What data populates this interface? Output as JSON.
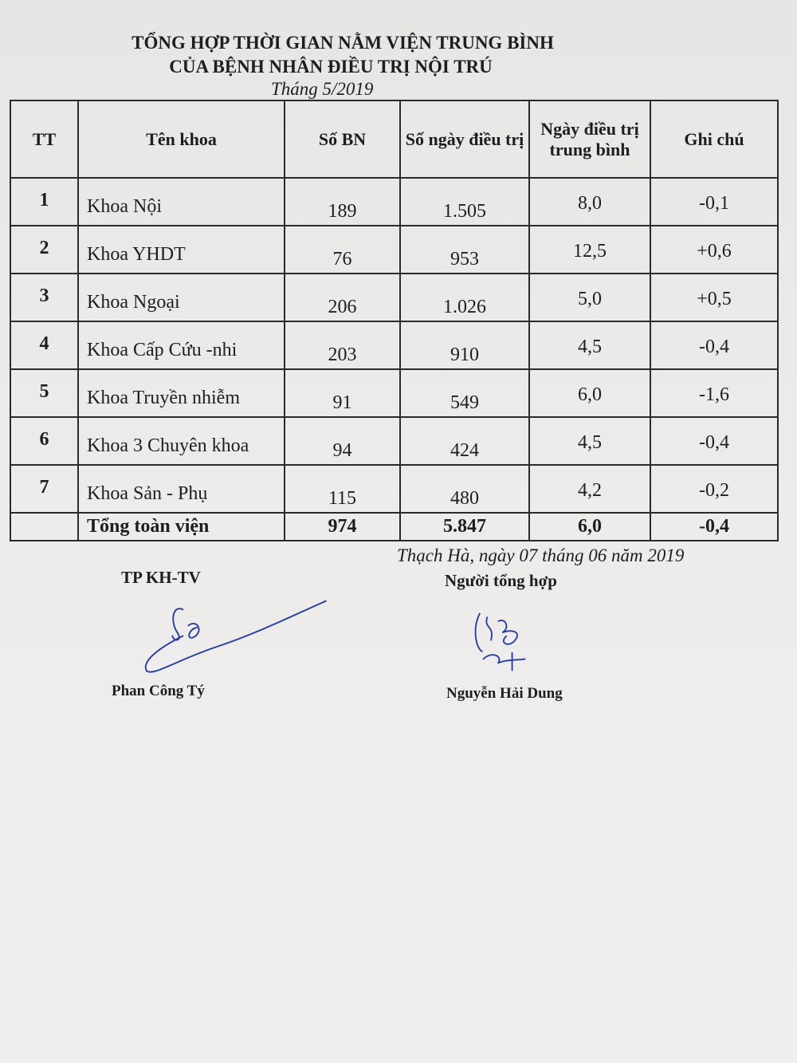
{
  "header": {
    "title_line1": "TỔNG HỢP THỜI GIAN NẰM VIỆN TRUNG BÌNH",
    "title_line2": "CỦA BỆNH NHÂN ĐIỀU TRỊ NỘI TRÚ",
    "subtitle": "Tháng 5/2019"
  },
  "table": {
    "columns": [
      "TT",
      "Tên khoa",
      "Số BN",
      "Số ngày điều trị",
      "Ngày điều trị trung bình",
      "Ghi chú"
    ],
    "rows": [
      [
        "1",
        "Khoa  Nội",
        "189",
        "1.505",
        "8,0",
        "-0,1"
      ],
      [
        "2",
        "Khoa YHDT",
        "76",
        "953",
        "12,5",
        "+0,6"
      ],
      [
        "3",
        "Khoa Ngoại",
        "206",
        "1.026",
        "5,0",
        "+0,5"
      ],
      [
        "4",
        "Khoa Cấp Cứu -nhi",
        "203",
        "910",
        "4,5",
        "-0,4"
      ],
      [
        "5",
        "Khoa Truyền nhiễm",
        "91",
        "549",
        "6,0",
        "-1,6"
      ],
      [
        "6",
        "Khoa 3 Chuyên khoa",
        "94",
        "424",
        "4,5",
        "-0,4"
      ],
      [
        "7",
        "Khoa Sản - Phụ",
        "115",
        "480",
        "4,2",
        "-0,2"
      ]
    ],
    "total": [
      "",
      "Tổng toàn viện",
      "974",
      "5.847",
      "6,0",
      "-0,4"
    ]
  },
  "footer": {
    "place_date": "Thạch Hà, ngày 07 tháng 06 năm 2019",
    "left_title": "TP KH-TV",
    "left_name": "Phan Công Tý",
    "right_title": "Người tổng hợp",
    "right_name": "Nguyễn Hải Dung"
  }
}
